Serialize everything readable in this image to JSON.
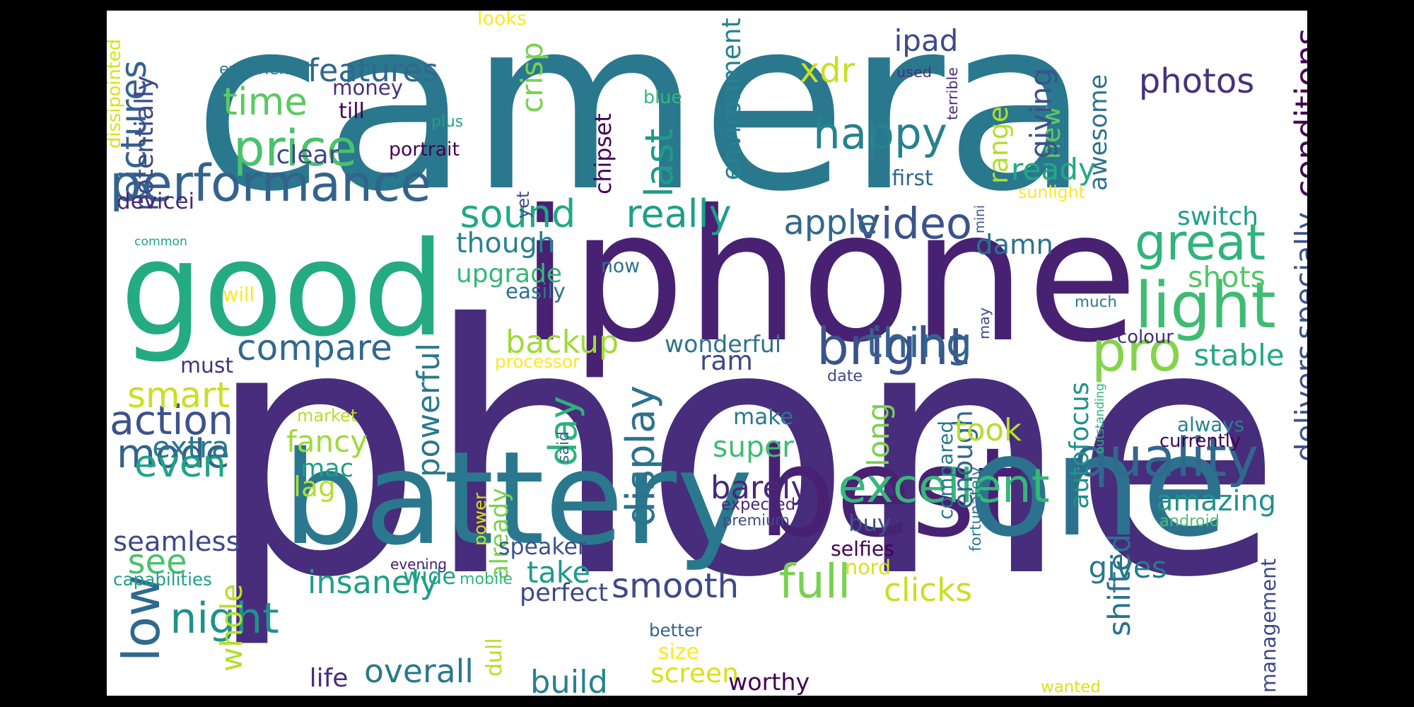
{
  "words": [
    {
      "text": "camera",
      "color": "#2a788e",
      "v": false
    },
    {
      "text": "phone",
      "color": "#472d7b",
      "v": false
    },
    {
      "text": "iphone",
      "color": "#482173",
      "v": false
    },
    {
      "text": "good",
      "color": "#25ab82",
      "v": false
    },
    {
      "text": "battery",
      "color": "#2a788e",
      "v": false
    },
    {
      "text": "best",
      "color": "#482173",
      "v": false
    },
    {
      "text": "one",
      "color": "#2c728e",
      "v": false
    },
    {
      "text": "performance",
      "color": "#33638d",
      "v": false
    },
    {
      "text": "great",
      "color": "#2fb47c",
      "v": false
    },
    {
      "text": "light",
      "color": "#3fbc73",
      "v": false
    },
    {
      "text": "bright",
      "color": "#3b528b",
      "v": false
    },
    {
      "text": "pro",
      "color": "#84d44b",
      "v": false
    },
    {
      "text": "quality",
      "color": "#31688e",
      "v": false
    },
    {
      "text": "excellent",
      "color": "#35b779",
      "v": false
    },
    {
      "text": "awesome",
      "color": "#2c728e",
      "v": true
    },
    {
      "text": "happy",
      "color": "#26828e",
      "v": false
    },
    {
      "text": "pictures",
      "color": "#33638d",
      "v": true
    },
    {
      "text": "mode",
      "color": "#33638d",
      "v": false
    },
    {
      "text": "time",
      "color": "#5ec962",
      "v": false
    },
    {
      "text": "price",
      "color": "#4ac16d",
      "v": false
    },
    {
      "text": "video",
      "color": "#3b528b",
      "v": false
    },
    {
      "text": "really",
      "color": "#1f9e89",
      "v": false
    },
    {
      "text": "sound",
      "color": "#22a884",
      "v": false
    },
    {
      "text": "switch",
      "color": "#1f9e89",
      "v": false
    },
    {
      "text": "compare",
      "color": "#31688e",
      "v": false
    },
    {
      "text": "action",
      "color": "#3b528b",
      "v": false
    },
    {
      "text": "backup",
      "color": "#a0da39",
      "v": false
    },
    {
      "text": "thing",
      "color": "#33638d",
      "v": false
    },
    {
      "text": "smart",
      "color": "#c8e020",
      "v": false
    },
    {
      "text": "display",
      "color": "#2c728e",
      "v": true
    },
    {
      "text": "day",
      "color": "#2db27d",
      "v": true
    },
    {
      "text": "amazing",
      "color": "#21918c",
      "v": false
    },
    {
      "text": "enough",
      "color": "#31688e",
      "v": true
    },
    {
      "text": "smooth",
      "color": "#3e4989",
      "v": false
    },
    {
      "text": "full",
      "color": "#7ad151",
      "v": false
    },
    {
      "text": "night",
      "color": "#21918c",
      "v": false
    },
    {
      "text": "low",
      "color": "#31688e",
      "v": true
    },
    {
      "text": "even",
      "color": "#20a386",
      "v": false
    },
    {
      "text": "last",
      "color": "#1f9a8a",
      "v": true
    },
    {
      "text": "new",
      "color": "#5ec962",
      "v": true
    },
    {
      "text": "range",
      "color": "#b5de2b",
      "v": true
    },
    {
      "text": "powerful",
      "color": "#2a788e",
      "v": true
    },
    {
      "text": "lag",
      "color": "#b5de2b",
      "v": false
    },
    {
      "text": "features",
      "color": "#31688e",
      "v": false
    },
    {
      "text": "chipset",
      "color": "#440154",
      "v": true
    },
    {
      "text": "photos",
      "color": "#46327e",
      "v": false
    },
    {
      "text": "conditions",
      "color": "#440154",
      "v": true
    },
    {
      "text": "ipad",
      "color": "#3e4989",
      "v": false
    },
    {
      "text": "xdr",
      "color": "#c8e020",
      "v": false
    },
    {
      "text": "crisp",
      "color": "#7ad151",
      "v": true
    },
    {
      "text": "environment",
      "color": "#26828e",
      "v": true
    },
    {
      "text": "giving",
      "color": "#3b528b",
      "v": true
    },
    {
      "text": "ready",
      "color": "#22a884",
      "v": false
    },
    {
      "text": "apple",
      "color": "#31688e",
      "v": false
    },
    {
      "text": "damn",
      "color": "#2c728e",
      "v": false
    },
    {
      "text": "though",
      "color": "#26828e",
      "v": false
    },
    {
      "text": "upgrade",
      "color": "#35b779",
      "v": false
    },
    {
      "text": "shots",
      "color": "#52c569",
      "v": false
    },
    {
      "text": "stable",
      "color": "#22a884",
      "v": false
    },
    {
      "text": "specially",
      "color": "#3b528b",
      "v": true
    },
    {
      "text": "ram",
      "color": "#3e4989",
      "v": false
    },
    {
      "text": "wonderful",
      "color": "#2c728e",
      "v": false
    },
    {
      "text": "delivers",
      "color": "#3b528b",
      "v": true
    },
    {
      "text": "autofocus",
      "color": "#21918c",
      "v": true
    },
    {
      "text": "compared",
      "color": "#2a788e",
      "v": true
    },
    {
      "text": "long",
      "color": "#7ad151",
      "v": true
    },
    {
      "text": "took",
      "color": "#b5de2b",
      "v": false
    },
    {
      "text": "make",
      "color": "#2a788e",
      "v": false
    },
    {
      "text": "super",
      "color": "#3fbc73",
      "v": false
    },
    {
      "text": "barely",
      "color": "#482878",
      "v": false
    },
    {
      "text": "fancy",
      "color": "#a0da39",
      "v": false
    },
    {
      "text": "mac",
      "color": "#1f9e89",
      "v": false
    },
    {
      "text": "extra",
      "color": "#2a788e",
      "v": false
    },
    {
      "text": "see",
      "color": "#4ac16d",
      "v": false
    },
    {
      "text": "seamless",
      "color": "#3e4989",
      "v": false
    },
    {
      "text": "must",
      "color": "#46327e",
      "v": false
    },
    {
      "text": "insanely",
      "color": "#1f9e89",
      "v": false
    },
    {
      "text": "whole",
      "color": "#b5de2b",
      "v": true
    },
    {
      "text": "already",
      "color": "#7ad151",
      "v": true
    },
    {
      "text": "speaker",
      "color": "#3b528b",
      "v": false
    },
    {
      "text": "take",
      "color": "#1f9a8a",
      "v": false
    },
    {
      "text": "perfect",
      "color": "#3e4989",
      "v": false
    },
    {
      "text": "wide",
      "color": "#20a386",
      "v": false
    },
    {
      "text": "clicks",
      "color": "#c8e020",
      "v": false
    },
    {
      "text": "gives",
      "color": "#2a788e",
      "v": false
    },
    {
      "text": "android",
      "color": "#4ac16d",
      "v": false
    },
    {
      "text": "shifted",
      "color": "#2c728e",
      "v": true
    },
    {
      "text": "buy",
      "color": "#3b528b",
      "v": false
    },
    {
      "text": "overall",
      "color": "#2a788e",
      "v": false
    },
    {
      "text": "build",
      "color": "#26828e",
      "v": false
    },
    {
      "text": "screen",
      "color": "#d8e219",
      "v": false
    },
    {
      "text": "size",
      "color": "#fde725",
      "v": false
    },
    {
      "text": "worthy",
      "color": "#440154",
      "v": false
    },
    {
      "text": "life",
      "color": "#472d7b",
      "v": false
    },
    {
      "text": "management",
      "color": "#3e4989",
      "v": true
    },
    {
      "text": "money",
      "color": "#46327e",
      "v": false
    },
    {
      "text": "potentially",
      "color": "#3e4989",
      "v": true
    },
    {
      "text": "clear",
      "color": "#3e4989",
      "v": false
    },
    {
      "text": "devicei",
      "color": "#482878",
      "v": false
    },
    {
      "text": "experience",
      "color": "#2a788e",
      "v": false
    },
    {
      "text": "dissipointed",
      "color": "#d8e219",
      "v": true
    },
    {
      "text": "looks",
      "color": "#fde725",
      "v": false
    },
    {
      "text": "till",
      "color": "#440154",
      "v": false
    },
    {
      "text": "plus",
      "color": "#20a386",
      "v": false
    },
    {
      "text": "portrait",
      "color": "#440154",
      "v": false
    },
    {
      "text": "blue",
      "color": "#35b779",
      "v": false
    },
    {
      "text": "used",
      "color": "#46327e",
      "v": false
    },
    {
      "text": "terrible",
      "color": "#472d7b",
      "v": true
    },
    {
      "text": "first",
      "color": "#31688e",
      "v": false
    },
    {
      "text": "mini",
      "color": "#3b528b",
      "v": true
    },
    {
      "text": "sunlight",
      "color": "#fde725",
      "v": false
    },
    {
      "text": "yet",
      "color": "#3e4989",
      "v": true
    },
    {
      "text": "common",
      "color": "#20a386",
      "v": false
    },
    {
      "text": "will",
      "color": "#fde725",
      "v": false
    },
    {
      "text": "now",
      "color": "#2c728e",
      "v": false
    },
    {
      "text": "easily",
      "color": "#2c728e",
      "v": false
    },
    {
      "text": "much",
      "color": "#2a788e",
      "v": false
    },
    {
      "text": "may",
      "color": "#3e4989",
      "v": true
    },
    {
      "text": "colour",
      "color": "#472d7b",
      "v": false
    },
    {
      "text": "processor",
      "color": "#fde725",
      "v": false
    },
    {
      "text": "date",
      "color": "#3e4989",
      "v": false
    },
    {
      "text": "market",
      "color": "#b5de2b",
      "v": false
    },
    {
      "text": "outstanding",
      "color": "#2fb47c",
      "v": true
    },
    {
      "text": "said",
      "color": "#31688e",
      "v": true
    },
    {
      "text": "power",
      "color": "#d8e219",
      "v": true
    },
    {
      "text": "always",
      "color": "#26828e",
      "v": false
    },
    {
      "text": "currently",
      "color": "#440154",
      "v": false
    },
    {
      "text": "expected",
      "color": "#482878",
      "v": false
    },
    {
      "text": "premium",
      "color": "#3e4989",
      "v": false
    },
    {
      "text": "fortunately",
      "color": "#2a788e",
      "v": true
    },
    {
      "text": "selfies",
      "color": "#440154",
      "v": false
    },
    {
      "text": "evening",
      "color": "#482173",
      "v": false
    },
    {
      "text": "nord",
      "color": "#d8e219",
      "v": false
    },
    {
      "text": "capabilities",
      "color": "#1f9e89",
      "v": false
    },
    {
      "text": "mobile",
      "color": "#2fb47c",
      "v": false
    },
    {
      "text": "better",
      "color": "#33638d",
      "v": false
    },
    {
      "text": "dull",
      "color": "#b5de2b",
      "v": true
    },
    {
      "text": "wanted",
      "color": "#d8e219",
      "v": false
    }
  ]
}
